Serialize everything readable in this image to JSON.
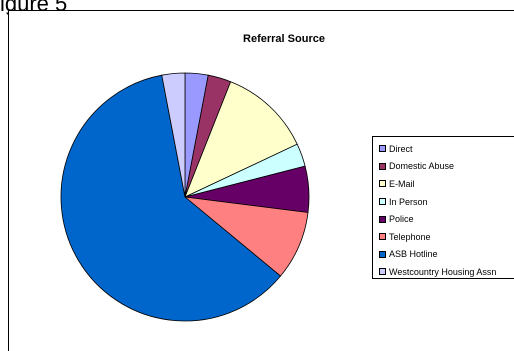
{
  "page": {
    "heading": "igure 5"
  },
  "chart_data": {
    "type": "pie",
    "title": "Referral Source",
    "legend_position": "right",
    "slices": [
      {
        "label": "Direct",
        "value": 3,
        "color": "#9999FF"
      },
      {
        "label": "Domestic Abuse",
        "value": 3,
        "color": "#993366"
      },
      {
        "label": "E-Mail",
        "value": 12,
        "color": "#FFFFCC"
      },
      {
        "label": "In Person",
        "value": 3,
        "color": "#CCFFFF"
      },
      {
        "label": "Police",
        "value": 6,
        "color": "#660066"
      },
      {
        "label": "Telephone",
        "value": 9,
        "color": "#FF8080"
      },
      {
        "label": "ASB Hotline",
        "value": 61,
        "color": "#0066CC"
      },
      {
        "label": "Westcountry Housing Assn",
        "value": 3,
        "color": "#CCCCFF"
      }
    ]
  }
}
